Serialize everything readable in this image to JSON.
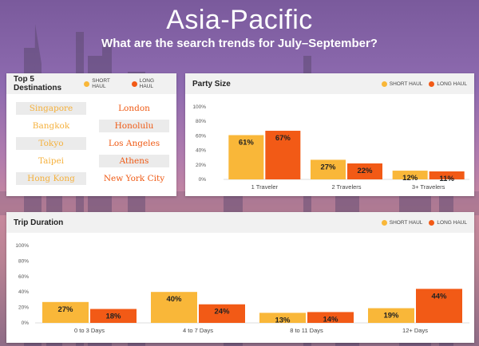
{
  "header": {
    "title": "Asia-Pacific",
    "subtitle": "What are the search trends for July–September?"
  },
  "colors": {
    "short_haul": "#f9b739",
    "long_haul": "#f25a16"
  },
  "legend": {
    "short_haul": "SHORT HAUL",
    "long_haul": "LONG HAUL"
  },
  "destinations": {
    "title": "Top 5 Destinations",
    "short_haul": [
      "Singapore",
      "Bangkok",
      "Tokyo",
      "Taipei",
      "Hong Kong"
    ],
    "long_haul": [
      "London",
      "Honolulu",
      "Los Angeles",
      "Athens",
      "New York City"
    ]
  },
  "chart_data": [
    {
      "type": "bar",
      "title": "Party Size",
      "categories": [
        "1 Traveler",
        "2 Travelers",
        "3+ Travelers"
      ],
      "series": [
        {
          "name": "SHORT HAUL",
          "values": [
            61,
            27,
            12
          ]
        },
        {
          "name": "LONG HAUL",
          "values": [
            67,
            22,
            11
          ]
        }
      ],
      "yticks": [
        "0%",
        "20%",
        "40%",
        "60%",
        "80%",
        "100%"
      ],
      "ylim": [
        0,
        100
      ],
      "legend": "top-right",
      "grid": false
    },
    {
      "type": "bar",
      "title": "Trip Duration",
      "categories": [
        "0 to 3 Days",
        "4 to 7 Days",
        "8 to 11 Days",
        "12+ Days"
      ],
      "series": [
        {
          "name": "SHORT HAUL",
          "values": [
            27,
            40,
            13,
            19
          ]
        },
        {
          "name": "LONG HAUL",
          "values": [
            18,
            24,
            14,
            44
          ]
        }
      ],
      "yticks": [
        "0%",
        "20%",
        "40%",
        "60%",
        "80%",
        "100%"
      ],
      "ylim": [
        0,
        100
      ],
      "legend": "top-right",
      "grid": false
    }
  ]
}
